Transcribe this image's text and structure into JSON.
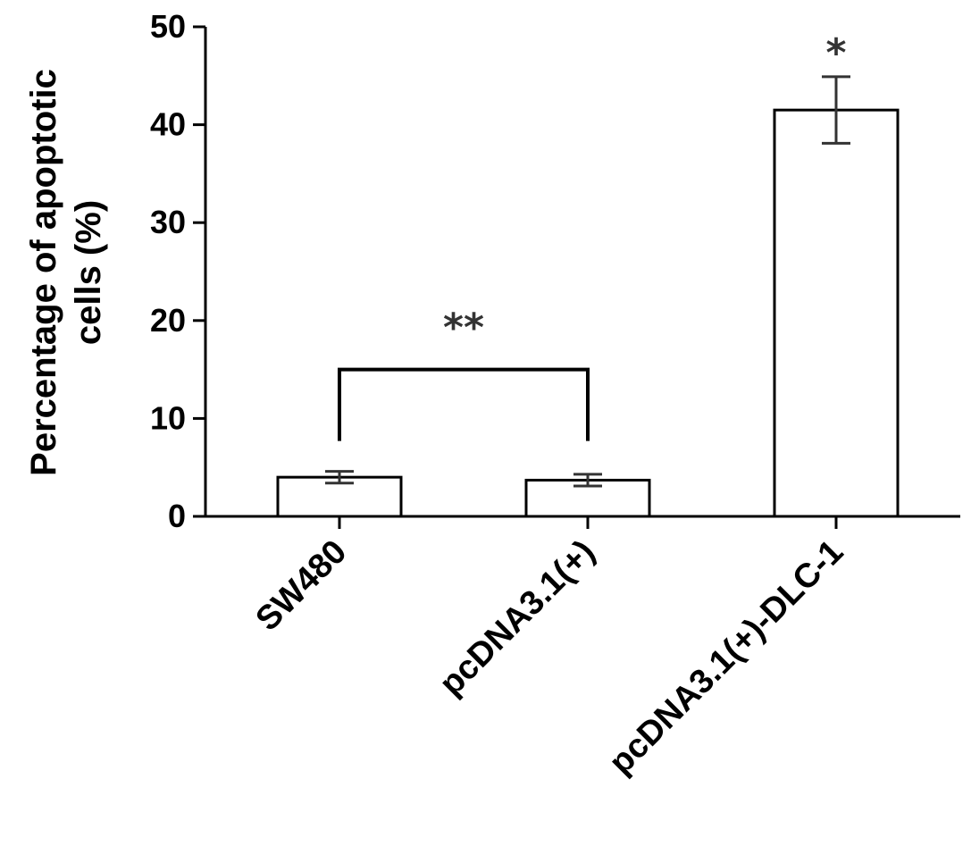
{
  "chart_data": {
    "type": "bar",
    "title": "",
    "ylabel": [
      "Percentage of apoptotic",
      "cells (%)"
    ],
    "xlabel": "",
    "ylim": [
      0,
      50
    ],
    "yticks": [
      0,
      10,
      20,
      30,
      40,
      50
    ],
    "categories": [
      "SW480",
      "pcDNA3.1(+)",
      "pcDNA3.1(+)-DLC-1"
    ],
    "values": [
      4.0,
      3.7,
      41.5
    ],
    "errors": [
      0.6,
      0.6,
      3.4
    ],
    "significance": [
      {
        "label": "**",
        "type": "bracket",
        "from": 0,
        "to": 1,
        "level": 15
      },
      {
        "label": "*",
        "type": "bar",
        "index": 2
      }
    ],
    "grid": false,
    "legend": "none",
    "colors": {
      "bar_fill": "#ffffff",
      "bar_stroke": "#000000",
      "axis": "#000000",
      "error_bar": "#333333"
    }
  }
}
